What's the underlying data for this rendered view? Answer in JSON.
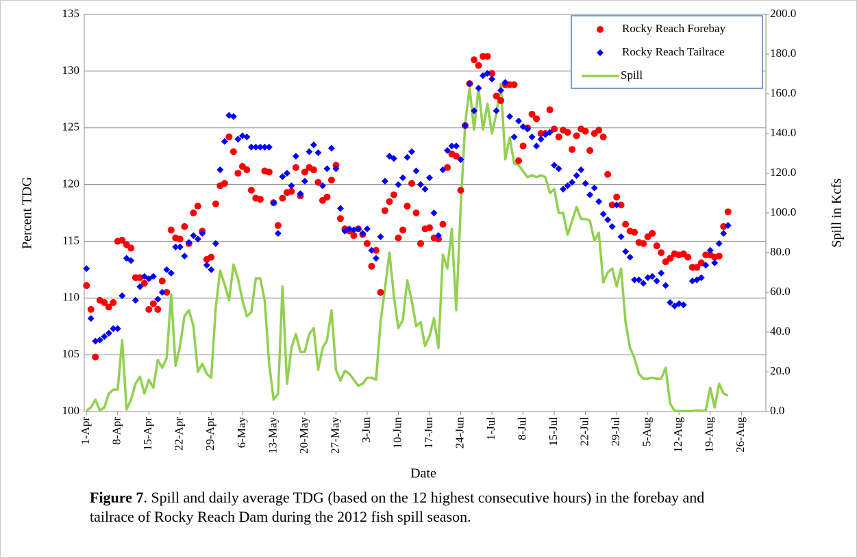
{
  "chart_data": {
    "type": "scatter-line",
    "xlabel": "Date",
    "ylabel": "Percent TDG",
    "y2label": "Spill in Kcfs",
    "categories": [
      "1-Apr",
      null,
      null,
      null,
      null,
      null,
      null,
      "8-Apr",
      null,
      null,
      null,
      null,
      null,
      null,
      "15-Apr",
      null,
      null,
      null,
      null,
      null,
      null,
      "22-Apr",
      null,
      null,
      null,
      null,
      null,
      null,
      "29-Apr",
      null,
      null,
      null,
      null,
      null,
      null,
      "6-May",
      null,
      null,
      null,
      null,
      null,
      null,
      "13-May",
      null,
      null,
      null,
      null,
      null,
      null,
      "20-May",
      null,
      null,
      null,
      null,
      null,
      null,
      "27-May",
      null,
      null,
      null,
      null,
      null,
      null,
      "3-Jun",
      null,
      null,
      null,
      null,
      null,
      null,
      "10-Jun",
      null,
      null,
      null,
      null,
      null,
      null,
      "17-Jun",
      null,
      null,
      null,
      null,
      null,
      null,
      "24-Jun",
      null,
      null,
      null,
      null,
      null,
      null,
      "1-Jul",
      null,
      null,
      null,
      null,
      null,
      null,
      "8-Jul",
      null,
      null,
      null,
      null,
      null,
      null,
      "15-Jul",
      null,
      null,
      null,
      null,
      null,
      null,
      "22-Jul",
      null,
      null,
      null,
      null,
      null,
      null,
      "29-Jul",
      null,
      null,
      null,
      null,
      null,
      null,
      "5-Aug",
      null,
      null,
      null,
      null,
      null,
      null,
      "12-Aug",
      null,
      null,
      null,
      null,
      null,
      null,
      "19-Aug",
      null,
      null,
      null,
      null,
      null,
      null,
      "26-Aug",
      null,
      null,
      null,
      null,
      null
    ],
    "ylim": [
      100,
      135
    ],
    "yticks": [
      100,
      105,
      110,
      115,
      120,
      125,
      130,
      135
    ],
    "y2lim": [
      0,
      200
    ],
    "y2ticks": [
      {
        "value": 0,
        "label": "0.0"
      },
      {
        "value": 20,
        "label": "20.0"
      },
      {
        "value": 40,
        "label": "40.0"
      },
      {
        "value": 60,
        "label": "60.0"
      },
      {
        "value": 80,
        "label": "80.0"
      },
      {
        "value": 100,
        "label": "100.0"
      },
      {
        "value": 120,
        "label": "120.0"
      },
      {
        "value": 140,
        "label": "140.0"
      },
      {
        "value": 160,
        "label": "160.0"
      },
      {
        "value": 180,
        "label": "180.0"
      },
      {
        "value": 200,
        "label": "200.0"
      }
    ],
    "grid": true,
    "legend": "top-right",
    "series": [
      {
        "name": "Rocky Reach Forebay",
        "color": "#ff0000",
        "marker": "circle",
        "values": [
          111.1,
          109,
          104.8,
          109.8,
          109.6,
          109.2,
          109.6,
          115,
          115.1,
          114.7,
          114.4,
          111.8,
          111.8,
          111.3,
          109,
          109.5,
          109,
          111.5,
          110.5,
          116,
          115.3,
          115.2,
          116.3,
          114.8,
          117.5,
          118.1,
          115.9,
          113.4,
          113.6,
          118.3,
          119.9,
          120.1,
          124.2,
          122.9,
          121,
          121.6,
          121.3,
          119.5,
          118.8,
          118.7,
          121.2,
          121.1,
          118.4,
          116.4,
          118.8,
          119.3,
          119.4,
          121.5,
          119,
          121.1,
          121.5,
          121.3,
          120.2,
          118.6,
          118.9,
          120.4,
          121.7,
          117,
          116.1,
          115.9,
          115.5,
          116.1,
          115.6,
          114.8,
          112.8,
          114.2,
          110.5,
          117.7,
          118.5,
          119.1,
          115.3,
          116,
          118.1,
          120.1,
          117.5,
          114.8,
          116.1,
          116.2,
          115.3,
          115.2,
          116.5,
          121.5,
          122.7,
          122.5,
          119.5,
          125.2,
          128.9,
          131,
          130.5,
          131.3,
          131.3,
          129.8,
          127.8,
          127.4,
          128.8,
          128.8,
          128.8,
          122.1,
          123.4,
          125,
          126.2,
          125.8,
          124.5,
          124.5,
          126.6,
          124.9,
          124.2,
          124.8,
          124.6,
          123.1,
          124.3,
          124.9,
          124.7,
          123,
          124.5,
          124.8,
          124.2,
          120.9,
          118.2,
          118.9,
          118.2,
          116.5,
          115.9,
          115.8,
          114.9,
          114.8,
          115.4,
          115.7,
          114.6,
          114,
          113.2,
          113.5,
          113.9,
          113.8,
          113.9,
          113.6,
          112.7,
          112.7,
          113.1,
          113.8,
          113.8,
          113.6,
          113.7,
          116.3,
          117.6,
          null,
          null,
          null,
          null,
          null,
          null,
          null,
          null
        ]
      },
      {
        "name": "Rocky Reach Tailrace",
        "color": "#0000ff",
        "marker": "diamond",
        "values": [
          112.6,
          108.2,
          106.2,
          106.3,
          106.6,
          106.9,
          107.3,
          107.3,
          110.2,
          113.5,
          113.3,
          109.8,
          111,
          111.9,
          111.7,
          111.9,
          109.9,
          110.5,
          112.5,
          112.2,
          114.5,
          114.5,
          113.7,
          114.9,
          115.5,
          115.2,
          115.7,
          112.9,
          112.5,
          114.8,
          121.3,
          123.8,
          126.1,
          126,
          124,
          124.3,
          124.2,
          123.3,
          123.3,
          123.3,
          123.3,
          123.3,
          118.4,
          115.7,
          120.7,
          121,
          119.9,
          122.5,
          119.2,
          120.3,
          122.9,
          123.5,
          122.8,
          119.9,
          121.4,
          123.2,
          121.4,
          117.9,
          115.9,
          116.1,
          116,
          116.1,
          115.7,
          116.1,
          114.2,
          113.5,
          115.4,
          120.3,
          122.5,
          122.3,
          120,
          120.6,
          122.4,
          122.9,
          121.2,
          120,
          119.6,
          120.6,
          117.5,
          115.5,
          121.3,
          123,
          123.4,
          123.4,
          122.2,
          125.2,
          128.9,
          126.5,
          128.5,
          129.6,
          129.8,
          129.3,
          126.5,
          128.3,
          129,
          126,
          124.2,
          125.6,
          125.1,
          124.9,
          124.2,
          123.4,
          124,
          124.4,
          124.6,
          121.7,
          121.4,
          119.6,
          119.9,
          120.2,
          120.8,
          121.3,
          120.1,
          119.1,
          119.7,
          118.5,
          117.4,
          116.9,
          116.3,
          118.2,
          115.4,
          114.1,
          113.6,
          111.6,
          111.6,
          111.3,
          111.8,
          111.9,
          111.5,
          112.2,
          111.1,
          109.6,
          109.3,
          109.5,
          109.4,
          null,
          111.5,
          111.6,
          111.8,
          112.9,
          114.2,
          113.1,
          114.8,
          115.7,
          116.4,
          null,
          null,
          null,
          null,
          null,
          null,
          null,
          null
        ]
      },
      {
        "name": "Spill",
        "color": "#92d050",
        "axis": "y2",
        "values": [
          0.5,
          2,
          6,
          0.5,
          2,
          9,
          11,
          11,
          36,
          1,
          6,
          14,
          17.5,
          9,
          16,
          12,
          26,
          22,
          27,
          59,
          23,
          33,
          48,
          51,
          43,
          20,
          24,
          19,
          17,
          52,
          71,
          64,
          56,
          74,
          67,
          56,
          48,
          50,
          67,
          67,
          56,
          24,
          6,
          9,
          63,
          14,
          32,
          39,
          30,
          30,
          39,
          42,
          21,
          32,
          36,
          51,
          21,
          15.5,
          20.5,
          19,
          16,
          13,
          14,
          17,
          17,
          16,
          45,
          62,
          80,
          58,
          42,
          46,
          66,
          56,
          43,
          45,
          33,
          38,
          47,
          32,
          79,
          72,
          92,
          51,
          103,
          145,
          163,
          142,
          163,
          142,
          155,
          140,
          150,
          165,
          127,
          138,
          125,
          124,
          121,
          118,
          119,
          118,
          119,
          118,
          110,
          112,
          100,
          100,
          89,
          96,
          103,
          97,
          97,
          96,
          86,
          90,
          65,
          70,
          72,
          63,
          72,
          45,
          32,
          27,
          19,
          16.5,
          16.5,
          17,
          16.5,
          16.5,
          22,
          4,
          0.3,
          0.2,
          0.2,
          0.2,
          0.2,
          0.5,
          0.3,
          0.5,
          12,
          2,
          14,
          9,
          8,
          null,
          null,
          null,
          null,
          null,
          null,
          null,
          null
        ]
      }
    ]
  },
  "caption": {
    "label": "Figure 7",
    "text": ".  Spill and daily average TDG (based on the 12 highest  consecutive hours) in the forebay and tailrace of Rocky Reach Dam during the 2012 fish spill season."
  }
}
